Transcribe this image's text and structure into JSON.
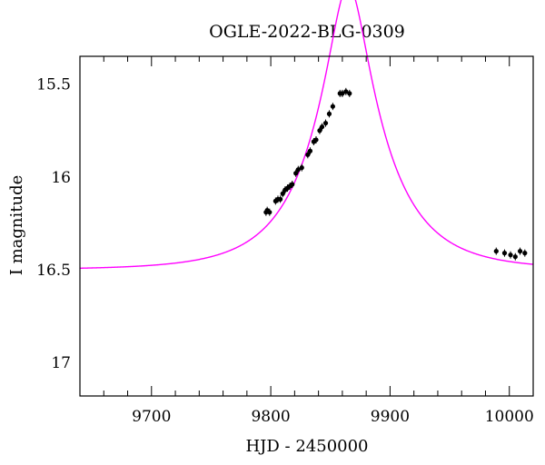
{
  "chart_data": {
    "type": "scatter",
    "title": "OGLE-2022-BLG-0309",
    "xlabel": "HJD - 2450000",
    "ylabel": "I magnitude",
    "xlim": [
      9640,
      10020
    ],
    "ylim": [
      17.18,
      15.35
    ],
    "y_inverted": true,
    "grid": false,
    "x_ticks": [
      9700,
      9800,
      9900,
      10000
    ],
    "x_tick_labels": [
      "9700",
      "9800",
      "9900",
      "10000"
    ],
    "y_ticks": [
      15.5,
      16,
      16.5,
      17
    ],
    "y_tick_labels": [
      "15.5",
      "16",
      "16.5",
      "17"
    ],
    "model": {
      "kind": "microlensing-model-curve",
      "color": "#ff00ff",
      "t0": 9865,
      "u0": 0.25,
      "tE": 60,
      "baseline_mag": 16.5
    },
    "series": [
      {
        "color": "#000000",
        "x": [
          9796,
          9797,
          9799,
          9804,
          9806,
          9808,
          9810,
          9812,
          9814,
          9816,
          9818,
          9821,
          9823,
          9826,
          9831,
          9833,
          9836,
          9838,
          9841,
          9843,
          9846,
          9849,
          9852,
          9858,
          9860,
          9863,
          9866,
          9989,
          9996,
          10001,
          10005,
          10009,
          10013
        ],
        "y": [
          16.19,
          16.18,
          16.19,
          16.13,
          16.12,
          16.12,
          16.09,
          16.07,
          16.06,
          16.05,
          16.04,
          15.98,
          15.96,
          15.95,
          15.88,
          15.86,
          15.81,
          15.8,
          15.75,
          15.73,
          15.71,
          15.66,
          15.62,
          15.55,
          15.55,
          15.54,
          15.55,
          16.4,
          16.41,
          16.42,
          16.43,
          16.4,
          16.41
        ]
      }
    ]
  }
}
